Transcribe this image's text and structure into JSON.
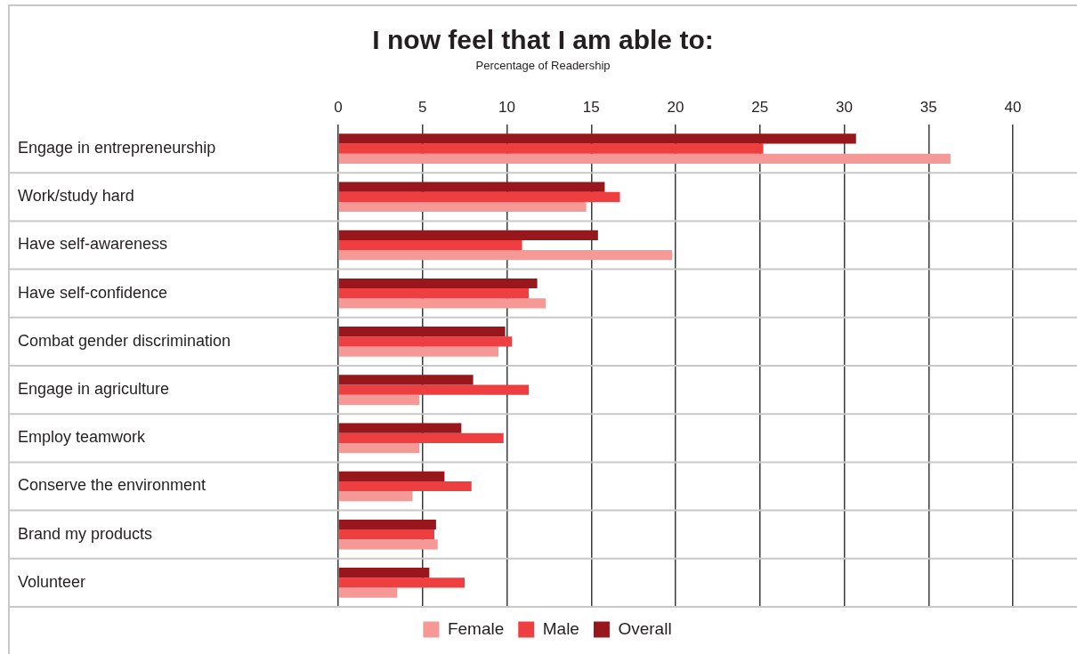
{
  "chart_data": {
    "type": "bar",
    "title": "I now feel that I am able to:",
    "subtitle": "Percentage of Readership",
    "orientation": "horizontal",
    "categories": [
      "Engage in entrepreneurship",
      "Work/study hard",
      "Have self-awareness",
      "Have self-confidence",
      "Combat gender discrimination",
      "Engage in agriculture",
      "Employ teamwork",
      "Conserve the environment",
      "Brand my products",
      "Volunteer"
    ],
    "series": [
      {
        "name": "Female",
        "color": "#f59896",
        "values": [
          36.3,
          14.7,
          19.8,
          12.3,
          9.5,
          4.8,
          4.8,
          4.4,
          5.9,
          3.5
        ]
      },
      {
        "name": "Male",
        "color": "#ef3e3f",
        "values": [
          25.2,
          16.7,
          10.9,
          11.3,
          10.3,
          11.3,
          9.8,
          7.9,
          5.7,
          7.5
        ]
      },
      {
        "name": "Overall",
        "color": "#98171c",
        "values": [
          30.7,
          15.8,
          15.4,
          11.8,
          9.9,
          8.0,
          7.3,
          6.3,
          5.8,
          5.4
        ]
      }
    ],
    "xlim": [
      0,
      40
    ],
    "xticks": [
      0,
      5,
      10,
      15,
      20,
      25,
      30,
      35,
      40
    ],
    "grid": true,
    "legend": "bottom"
  }
}
